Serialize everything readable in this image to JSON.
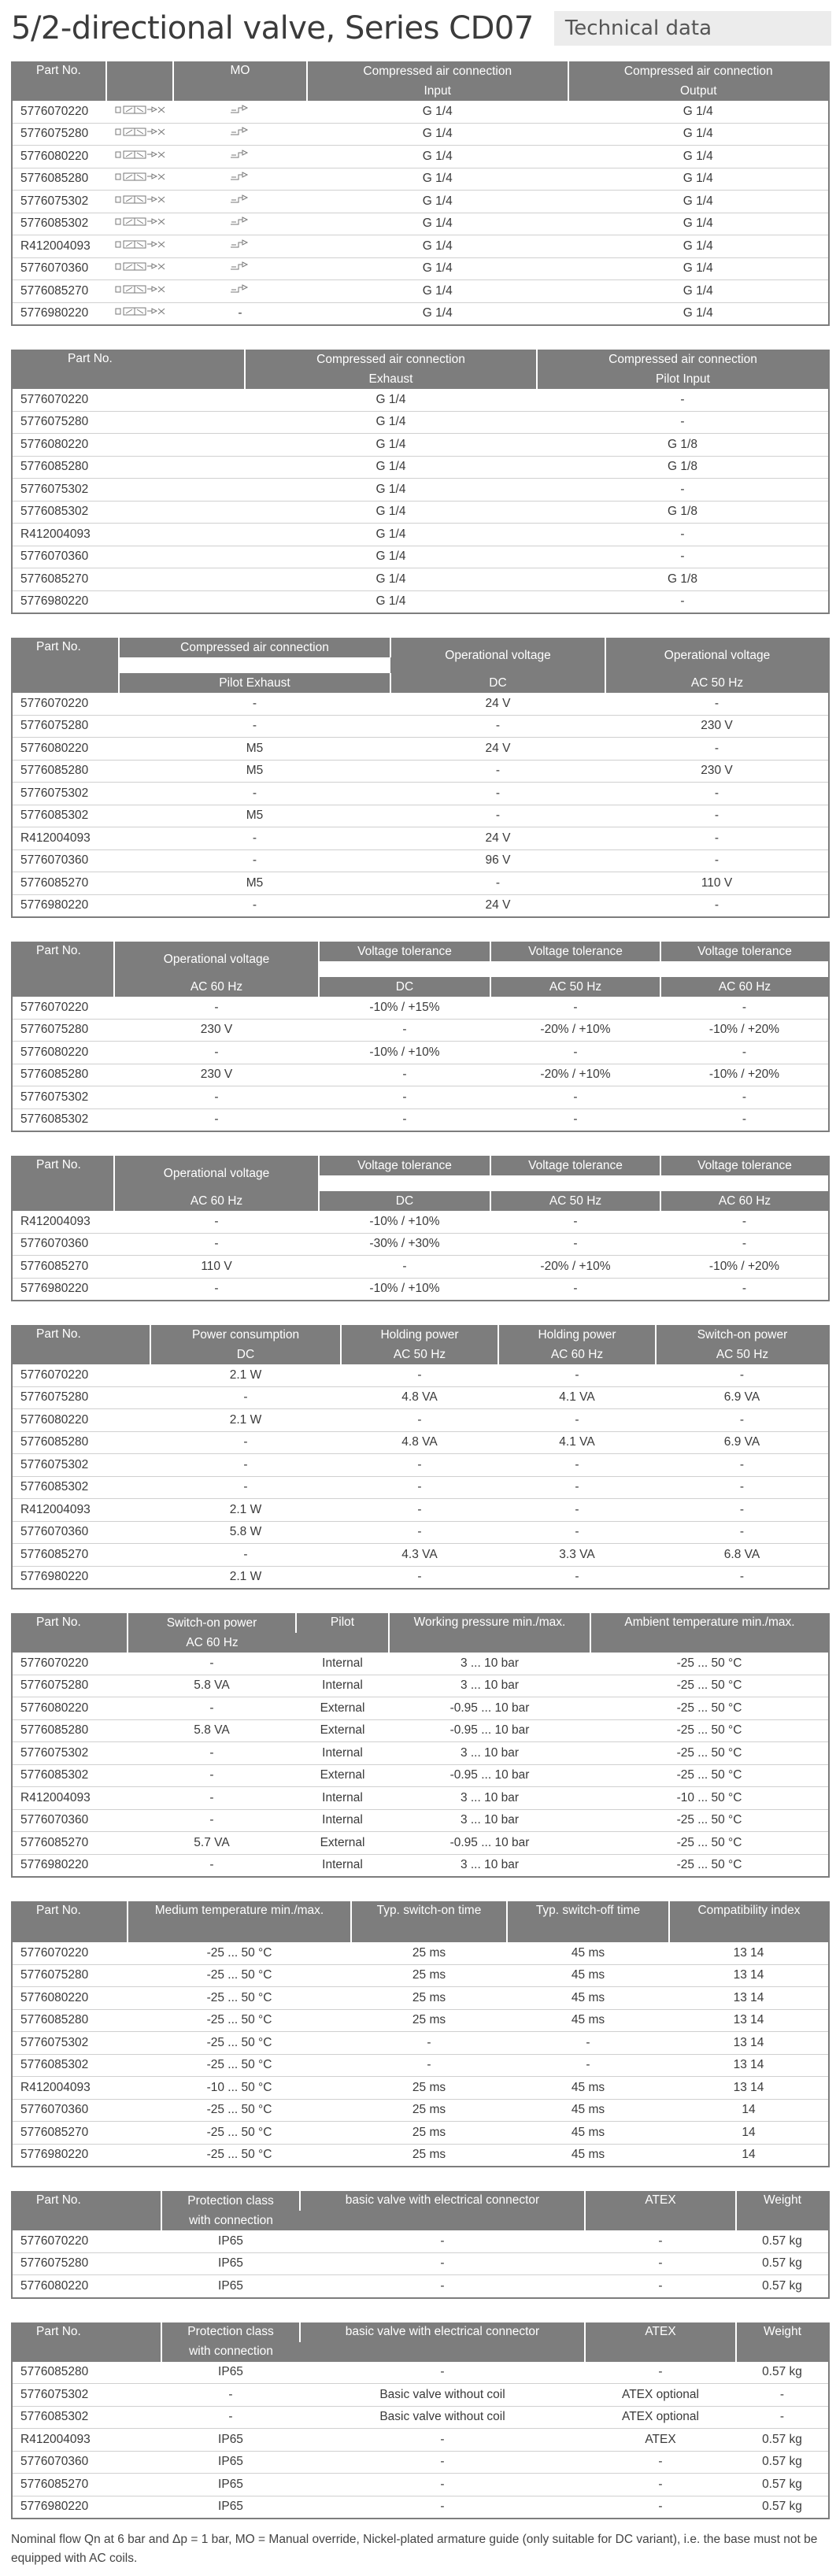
{
  "title": "5/2-directional valve, Series CD07",
  "subtitle": "Technical data",
  "t1": {
    "h": {
      "part": "Part No.",
      "symbol": "",
      "mo": "MO",
      "ca": "Compressed air connection",
      "input": "Input",
      "output": "Output"
    },
    "rows": [
      {
        "part": "5776070220",
        "mo": "icon",
        "in": "G 1/4",
        "out": "G 1/4"
      },
      {
        "part": "5776075280",
        "mo": "icon",
        "in": "G 1/4",
        "out": "G 1/4"
      },
      {
        "part": "5776080220",
        "mo": "icon",
        "in": "G 1/4",
        "out": "G 1/4"
      },
      {
        "part": "5776085280",
        "mo": "icon",
        "in": "G 1/4",
        "out": "G 1/4"
      },
      {
        "part": "5776075302",
        "mo": "icon",
        "in": "G 1/4",
        "out": "G 1/4"
      },
      {
        "part": "5776085302",
        "mo": "icon",
        "in": "G 1/4",
        "out": "G 1/4"
      },
      {
        "part": "R412004093",
        "mo": "icon",
        "in": "G 1/4",
        "out": "G 1/4"
      },
      {
        "part": "5776070360",
        "mo": "icon",
        "in": "G 1/4",
        "out": "G 1/4"
      },
      {
        "part": "5776085270",
        "mo": "icon",
        "in": "G 1/4",
        "out": "G 1/4"
      },
      {
        "part": "5776980220",
        "mo": "-",
        "in": "G 1/4",
        "out": "G 1/4"
      }
    ]
  },
  "t2": {
    "h": {
      "part": "Part No.",
      "ca": "Compressed air connection",
      "exhaust": "Exhaust",
      "pilot": "Pilot Input"
    },
    "rows": [
      {
        "part": "5776070220",
        "a": "G 1/4",
        "b": "-"
      },
      {
        "part": "5776075280",
        "a": "G 1/4",
        "b": "-"
      },
      {
        "part": "5776080220",
        "a": "G 1/4",
        "b": "G 1/8"
      },
      {
        "part": "5776085280",
        "a": "G 1/4",
        "b": "G 1/8"
      },
      {
        "part": "5776075302",
        "a": "G 1/4",
        "b": "-"
      },
      {
        "part": "5776085302",
        "a": "G 1/4",
        "b": "G 1/8"
      },
      {
        "part": "R412004093",
        "a": "G 1/4",
        "b": "-"
      },
      {
        "part": "5776070360",
        "a": "G 1/4",
        "b": "-"
      },
      {
        "part": "5776085270",
        "a": "G 1/4",
        "b": "G 1/8"
      },
      {
        "part": "5776980220",
        "a": "G 1/4",
        "b": "-"
      }
    ]
  },
  "t3": {
    "h": {
      "part": "Part No.",
      "ca": "Compressed air connection",
      "pe": "Pilot Exhaust",
      "ov": "Operational voltage",
      "dc": "DC",
      "ac50": "AC 50 Hz"
    },
    "rows": [
      {
        "part": "5776070220",
        "a": "-",
        "b": "24 V",
        "c": "-"
      },
      {
        "part": "5776075280",
        "a": "-",
        "b": "-",
        "c": "230 V"
      },
      {
        "part": "5776080220",
        "a": "M5",
        "b": "24 V",
        "c": "-"
      },
      {
        "part": "5776085280",
        "a": "M5",
        "b": "-",
        "c": "230 V"
      },
      {
        "part": "5776075302",
        "a": "-",
        "b": "-",
        "c": "-"
      },
      {
        "part": "5776085302",
        "a": "M5",
        "b": "-",
        "c": "-"
      },
      {
        "part": "R412004093",
        "a": "-",
        "b": "24 V",
        "c": "-"
      },
      {
        "part": "5776070360",
        "a": "-",
        "b": "96 V",
        "c": "-"
      },
      {
        "part": "5776085270",
        "a": "M5",
        "b": "-",
        "c": "110 V"
      },
      {
        "part": "5776980220",
        "a": "-",
        "b": "24 V",
        "c": "-"
      }
    ]
  },
  "t4": {
    "h": {
      "part": "Part No.",
      "ov": "Operational voltage",
      "vt": "Voltage tolerance",
      "ac60": "AC 60 Hz",
      "dc": "DC",
      "ac50": "AC 50 Hz"
    },
    "rows": [
      {
        "part": "5776070220",
        "a": "-",
        "b": "-10% / +15%",
        "c": "-",
        "d": "-"
      },
      {
        "part": "5776075280",
        "a": "230 V",
        "b": "-",
        "c": "-20% / +10%",
        "d": "-10% / +20%"
      },
      {
        "part": "5776080220",
        "a": "-",
        "b": "-10% / +10%",
        "c": "-",
        "d": "-"
      },
      {
        "part": "5776085280",
        "a": "230 V",
        "b": "-",
        "c": "-20% / +10%",
        "d": "-10% / +20%"
      },
      {
        "part": "5776075302",
        "a": "-",
        "b": "-",
        "c": "-",
        "d": "-"
      },
      {
        "part": "5776085302",
        "a": "-",
        "b": "-",
        "c": "-",
        "d": "-"
      }
    ]
  },
  "t5": {
    "h": {
      "part": "Part No.",
      "ov": "Operational voltage",
      "vt": "Voltage tolerance",
      "ac60": "AC 60 Hz",
      "dc": "DC",
      "ac50": "AC 50 Hz"
    },
    "rows": [
      {
        "part": "R412004093",
        "a": "-",
        "b": "-10% / +10%",
        "c": "-",
        "d": "-"
      },
      {
        "part": "5776070360",
        "a": "-",
        "b": "-30% / +30%",
        "c": "-",
        "d": "-"
      },
      {
        "part": "5776085270",
        "a": "110 V",
        "b": "-",
        "c": "-20% / +10%",
        "d": "-10% / +20%"
      },
      {
        "part": "5776980220",
        "a": "-",
        "b": "-10% / +10%",
        "c": "-",
        "d": "-"
      }
    ]
  },
  "t6": {
    "h": {
      "part": "Part No.",
      "pc": "Power consumption",
      "hp": "Holding power",
      "sp": "Switch-on power",
      "dc": "DC",
      "ac50": "AC 50 Hz",
      "ac60": "AC 60 Hz"
    },
    "rows": [
      {
        "part": "5776070220",
        "a": "2.1 W",
        "b": "-",
        "c": "-",
        "d": "-"
      },
      {
        "part": "5776075280",
        "a": "-",
        "b": "4.8 VA",
        "c": "4.1 VA",
        "d": "6.9 VA"
      },
      {
        "part": "5776080220",
        "a": "2.1 W",
        "b": "-",
        "c": "-",
        "d": "-"
      },
      {
        "part": "5776085280",
        "a": "-",
        "b": "4.8 VA",
        "c": "4.1 VA",
        "d": "6.9 VA"
      },
      {
        "part": "5776075302",
        "a": "-",
        "b": "-",
        "c": "-",
        "d": "-"
      },
      {
        "part": "5776085302",
        "a": "-",
        "b": "-",
        "c": "-",
        "d": "-"
      },
      {
        "part": "R412004093",
        "a": "2.1 W",
        "b": "-",
        "c": "-",
        "d": "-"
      },
      {
        "part": "5776070360",
        "a": "5.8 W",
        "b": "-",
        "c": "-",
        "d": "-"
      },
      {
        "part": "5776085270",
        "a": "-",
        "b": "4.3 VA",
        "c": "3.3 VA",
        "d": "6.8 VA"
      },
      {
        "part": "5776980220",
        "a": "2.1 W",
        "b": "-",
        "c": "-",
        "d": "-"
      }
    ]
  },
  "t7": {
    "h": {
      "part": "Part No.",
      "sp": "Switch-on power",
      "ac60": "AC 60 Hz",
      "pilot": "Pilot",
      "wp": "Working pressure min./max.",
      "at": "Ambient temperature min./max."
    },
    "rows": [
      {
        "part": "5776070220",
        "a": "-",
        "b": "Internal",
        "c": "3 ... 10 bar",
        "d": "-25 ... 50 °C"
      },
      {
        "part": "5776075280",
        "a": "5.8 VA",
        "b": "Internal",
        "c": "3 ... 10 bar",
        "d": "-25 ... 50 °C"
      },
      {
        "part": "5776080220",
        "a": "-",
        "b": "External",
        "c": "-0.95 ... 10 bar",
        "d": "-25 ... 50 °C"
      },
      {
        "part": "5776085280",
        "a": "5.8 VA",
        "b": "External",
        "c": "-0.95 ... 10 bar",
        "d": "-25 ... 50 °C"
      },
      {
        "part": "5776075302",
        "a": "-",
        "b": "Internal",
        "c": "3 ... 10 bar",
        "d": "-25 ... 50 °C"
      },
      {
        "part": "5776085302",
        "a": "-",
        "b": "External",
        "c": "-0.95 ... 10 bar",
        "d": "-25 ... 50 °C"
      },
      {
        "part": "R412004093",
        "a": "-",
        "b": "Internal",
        "c": "3 ... 10 bar",
        "d": "-10 ... 50 °C"
      },
      {
        "part": "5776070360",
        "a": "-",
        "b": "Internal",
        "c": "3 ... 10 bar",
        "d": "-25 ... 50 °C"
      },
      {
        "part": "5776085270",
        "a": "5.7 VA",
        "b": "External",
        "c": "-0.95 ... 10 bar",
        "d": "-25 ... 50 °C"
      },
      {
        "part": "5776980220",
        "a": "-",
        "b": "Internal",
        "c": "3 ... 10 bar",
        "d": "-25 ... 50 °C"
      }
    ]
  },
  "t8": {
    "h": {
      "part": "Part No.",
      "mt": "Medium temperature min./max.",
      "son": "Typ. switch-on time",
      "soff": "Typ. switch-off time",
      "ci": "Compatibility index"
    },
    "rows": [
      {
        "part": "5776070220",
        "a": "-25 ... 50 °C",
        "b": "25 ms",
        "c": "45 ms",
        "d": "13 14"
      },
      {
        "part": "5776075280",
        "a": "-25 ... 50 °C",
        "b": "25 ms",
        "c": "45 ms",
        "d": "13 14"
      },
      {
        "part": "5776080220",
        "a": "-25 ... 50 °C",
        "b": "25 ms",
        "c": "45 ms",
        "d": "13 14"
      },
      {
        "part": "5776085280",
        "a": "-25 ... 50 °C",
        "b": "25 ms",
        "c": "45 ms",
        "d": "13 14"
      },
      {
        "part": "5776075302",
        "a": "-25 ... 50 °C",
        "b": "-",
        "c": "-",
        "d": "13 14"
      },
      {
        "part": "5776085302",
        "a": "-25 ... 50 °C",
        "b": "-",
        "c": "-",
        "d": "13 14"
      },
      {
        "part": "R412004093",
        "a": "-10 ... 50 °C",
        "b": "25 ms",
        "c": "45 ms",
        "d": "13 14"
      },
      {
        "part": "5776070360",
        "a": "-25 ... 50 °C",
        "b": "25 ms",
        "c": "45 ms",
        "d": "14"
      },
      {
        "part": "5776085270",
        "a": "-25 ... 50 °C",
        "b": "25 ms",
        "c": "45 ms",
        "d": "14"
      },
      {
        "part": "5776980220",
        "a": "-25 ... 50 °C",
        "b": "25 ms",
        "c": "45 ms",
        "d": "14"
      }
    ]
  },
  "t9": {
    "h": {
      "part": "Part No.",
      "pc": "Protection class",
      "wc": "with connection",
      "bv": "basic valve with electrical connector",
      "atex": "ATEX",
      "w": "Weight"
    },
    "rows": [
      {
        "part": "5776070220",
        "a": "IP65",
        "b": "-",
        "c": "-",
        "d": "0.57 kg"
      },
      {
        "part": "5776075280",
        "a": "IP65",
        "b": "-",
        "c": "-",
        "d": "0.57 kg"
      },
      {
        "part": "5776080220",
        "a": "IP65",
        "b": "-",
        "c": "-",
        "d": "0.57 kg"
      }
    ]
  },
  "t10": {
    "h": {
      "part": "Part No.",
      "pc": "Protection class",
      "wc": "with connection",
      "bv": "basic valve with electrical connector",
      "atex": "ATEX",
      "w": "Weight"
    },
    "rows": [
      {
        "part": "5776085280",
        "a": "IP65",
        "b": "-",
        "c": "-",
        "d": "0.57 kg"
      },
      {
        "part": "5776075302",
        "a": "-",
        "b": "Basic valve without coil",
        "c": "ATEX optional",
        "d": "-"
      },
      {
        "part": "5776085302",
        "a": "-",
        "b": "Basic valve without coil",
        "c": "ATEX optional",
        "d": "-"
      },
      {
        "part": "R412004093",
        "a": "IP65",
        "b": "-",
        "c": "ATEX",
        "d": "0.57 kg"
      },
      {
        "part": "5776070360",
        "a": "IP65",
        "b": "-",
        "c": "-",
        "d": "0.57 kg"
      },
      {
        "part": "5776085270",
        "a": "IP65",
        "b": "-",
        "c": "-",
        "d": "0.57 kg"
      },
      {
        "part": "5776980220",
        "a": "IP65",
        "b": "-",
        "c": "-",
        "d": "0.57 kg"
      }
    ]
  },
  "footnote": "Nominal flow Qn at 6 bar and Δp = 1 bar, MO = Manual override, Nickel-plated armature guide (only suitable for DC variant), i.e. the base must not be equipped with AC coils."
}
